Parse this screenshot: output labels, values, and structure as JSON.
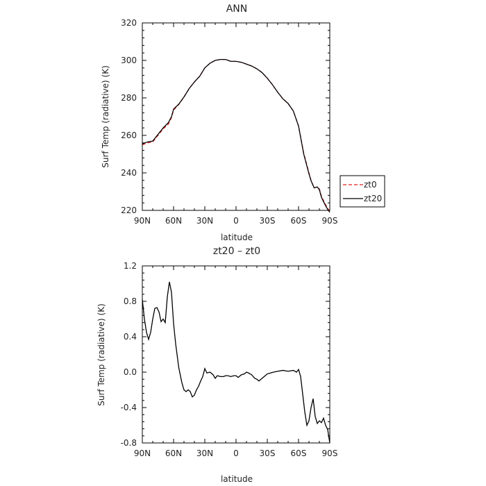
{
  "chart_data": [
    {
      "type": "line",
      "title": "ANN",
      "xlabel": "latitude",
      "ylabel": "Surf Temp (radiative) (K)",
      "xlim": [
        90,
        -90
      ],
      "ylim": [
        220,
        320
      ],
      "x_ticks": [
        90,
        60,
        30,
        0,
        -30,
        -60,
        -90
      ],
      "x_tick_labels": [
        "90N",
        "60N",
        "30N",
        "0",
        "30S",
        "60S",
        "90S"
      ],
      "y_ticks": [
        220,
        240,
        260,
        280,
        300,
        320
      ],
      "y_tick_labels": [
        "220",
        "240",
        "260",
        "280",
        "300",
        "320"
      ],
      "legend": {
        "position": "right",
        "entries": [
          "zt0",
          "zt20"
        ]
      },
      "grid": false,
      "series": [
        {
          "name": "zt0",
          "color": "#e31a1c",
          "dash": "dashed",
          "x": [
            90,
            85,
            80,
            75,
            70,
            65,
            62,
            60,
            55,
            50,
            45,
            40,
            35,
            30,
            25,
            20,
            15,
            10,
            5,
            0,
            -5,
            -10,
            -15,
            -20,
            -25,
            -30,
            -35,
            -40,
            -45,
            -50,
            -55,
            -60,
            -65,
            -70,
            -72,
            -75,
            -78,
            -80,
            -82,
            -85,
            -88,
            -90
          ],
          "y": [
            255.0,
            256.0,
            256.5,
            260.0,
            263.5,
            266.0,
            269.5,
            273.5,
            276.5,
            280.5,
            285.0,
            288.5,
            291.5,
            296.0,
            298.5,
            300.0,
            300.5,
            300.5,
            299.5,
            299.5,
            299.0,
            298.0,
            297.0,
            295.5,
            293.5,
            290.5,
            287.0,
            283.0,
            279.5,
            277.0,
            273.0,
            265.0,
            250.5,
            240.0,
            236.0,
            232.0,
            232.5,
            231.5,
            227.5,
            224.0,
            221.0,
            219.5
          ]
        },
        {
          "name": "zt20",
          "color": "#000000",
          "dash": "solid",
          "x": [
            90,
            85,
            80,
            75,
            70,
            65,
            62,
            60,
            55,
            50,
            45,
            40,
            35,
            30,
            25,
            20,
            15,
            10,
            5,
            0,
            -5,
            -10,
            -15,
            -20,
            -25,
            -30,
            -35,
            -40,
            -45,
            -50,
            -55,
            -60,
            -65,
            -70,
            -72,
            -75,
            -78,
            -80,
            -82,
            -85,
            -88,
            -90
          ],
          "y": [
            255.5,
            256.5,
            257.0,
            260.5,
            264.0,
            266.8,
            270.0,
            274.0,
            276.7,
            280.5,
            285.0,
            288.5,
            291.5,
            296.0,
            298.5,
            300.0,
            300.5,
            300.5,
            299.5,
            299.5,
            299.0,
            298.0,
            297.0,
            295.5,
            293.5,
            290.5,
            287.0,
            283.0,
            279.5,
            277.0,
            273.0,
            265.0,
            250.0,
            239.5,
            235.8,
            232.0,
            232.5,
            231.0,
            227.0,
            223.5,
            220.5,
            219.0
          ]
        }
      ]
    },
    {
      "type": "line",
      "title": "zt20 – zt0",
      "xlabel": "latitude",
      "ylabel": "Surf Temp (radiative) (K)",
      "xlim": [
        90,
        -90
      ],
      "ylim": [
        -0.8,
        1.2
      ],
      "x_ticks": [
        90,
        60,
        30,
        0,
        -30,
        -60,
        -90
      ],
      "x_tick_labels": [
        "90N",
        "60N",
        "30N",
        "0",
        "30S",
        "60S",
        "90S"
      ],
      "y_ticks": [
        -0.8,
        -0.4,
        0.0,
        0.4,
        0.8,
        1.2
      ],
      "y_tick_labels": [
        "-0.8",
        "-0.4",
        "0.0",
        "0.4",
        "0.8",
        "1.2"
      ],
      "grid": false,
      "series": [
        {
          "color": "#000000",
          "dash": "solid",
          "x": [
            90,
            88,
            86,
            84,
            82,
            80,
            78,
            76,
            74,
            72,
            70,
            68,
            66,
            64,
            62,
            60,
            58,
            55,
            52,
            50,
            48,
            46,
            44,
            42,
            40,
            38,
            36,
            34,
            32,
            30,
            28,
            25,
            22,
            20,
            18,
            15,
            12,
            10,
            8,
            5,
            2,
            0,
            -2,
            -5,
            -8,
            -10,
            -12,
            -15,
            -18,
            -20,
            -22,
            -25,
            -28,
            -30,
            -33,
            -36,
            -40,
            -45,
            -50,
            -55,
            -58,
            -60,
            -62,
            -64,
            -66,
            -68,
            -70,
            -72,
            -74,
            -76,
            -78,
            -80,
            -82,
            -84,
            -86,
            -88,
            -90
          ],
          "y": [
            0.82,
            0.6,
            0.45,
            0.37,
            0.45,
            0.6,
            0.72,
            0.73,
            0.68,
            0.57,
            0.6,
            0.56,
            0.85,
            1.02,
            0.9,
            0.55,
            0.32,
            0.05,
            -0.12,
            -0.2,
            -0.22,
            -0.2,
            -0.22,
            -0.28,
            -0.26,
            -0.2,
            -0.16,
            -0.1,
            -0.05,
            0.04,
            -0.01,
            0.0,
            -0.03,
            -0.07,
            -0.04,
            -0.05,
            -0.05,
            -0.04,
            -0.04,
            -0.05,
            -0.04,
            -0.04,
            -0.06,
            -0.03,
            -0.02,
            0.0,
            -0.01,
            -0.03,
            -0.07,
            -0.08,
            -0.1,
            -0.07,
            -0.04,
            -0.02,
            -0.01,
            0.0,
            0.01,
            0.02,
            0.01,
            0.02,
            0.0,
            0.03,
            -0.05,
            -0.25,
            -0.45,
            -0.6,
            -0.55,
            -0.4,
            -0.3,
            -0.5,
            -0.58,
            -0.55,
            -0.57,
            -0.52,
            -0.6,
            -0.65,
            -0.8
          ]
        }
      ]
    }
  ]
}
